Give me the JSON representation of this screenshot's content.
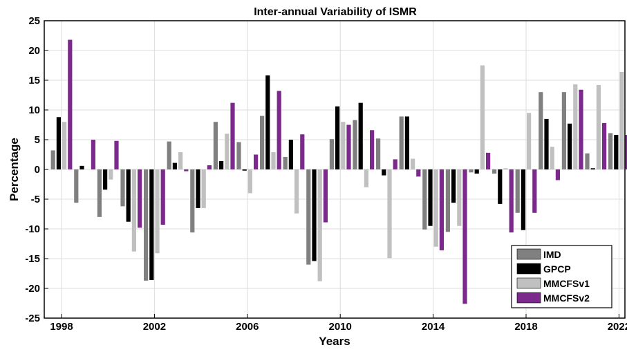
{
  "chart_data": {
    "type": "bar",
    "title": "Inter-annual Variability of ISMR",
    "xlabel": "Years",
    "ylabel": "Percentage",
    "ylim": [
      -25,
      25
    ],
    "yticks": [
      25,
      20,
      15,
      10,
      5,
      0,
      -5,
      -10,
      -15,
      -20,
      -25
    ],
    "xticks": [
      "1998",
      "2002",
      "2006",
      "2010",
      "2014",
      "2018",
      "2022"
    ],
    "grid": true,
    "legend_position": "bottom-right",
    "categories": [
      "1998",
      "1999",
      "2000",
      "2001",
      "2002",
      "2003",
      "2004",
      "2005",
      "2006",
      "2007",
      "2008",
      "2009",
      "2010",
      "2011",
      "2012",
      "2013",
      "2014",
      "2015",
      "2016",
      "2017",
      "2018",
      "2019",
      "2020",
      "2021",
      "2022"
    ],
    "series": [
      {
        "name": "IMD",
        "color": "#808080",
        "values": [
          3.2,
          -5.6,
          -8.0,
          -6.2,
          -18.7,
          4.7,
          -10.6,
          8.0,
          4.6,
          9.0,
          2.1,
          -16.0,
          5.1,
          8.3,
          5.2,
          8.9,
          -10.1,
          -10.5,
          -0.5,
          -0.7,
          -7.3,
          13.0,
          13.0,
          2.7,
          6.1
        ]
      },
      {
        "name": "GPCP",
        "color": "#000000",
        "values": [
          8.8,
          0.6,
          -3.4,
          -8.8,
          -18.6,
          1.1,
          -6.5,
          1.4,
          -0.2,
          15.8,
          5.0,
          -15.4,
          10.6,
          11.2,
          -1.0,
          8.9,
          -9.5,
          -5.6,
          -0.7,
          -5.8,
          -10.2,
          8.5,
          7.7,
          0.2,
          5.8
        ]
      },
      {
        "name": "MMCFSv1",
        "color": "#c0c0c0",
        "values": [
          8.0,
          0.0,
          -1.7,
          -13.8,
          -14.1,
          2.9,
          -6.5,
          6.0,
          -4.0,
          2.9,
          -7.4,
          -18.8,
          8.0,
          -3.0,
          -14.9,
          1.8,
          -13.0,
          -9.5,
          17.5,
          0.2,
          9.5,
          3.8,
          14.3,
          14.2,
          16.4
        ]
      },
      {
        "name": "MMCFSv2",
        "color": "#7b2a8c",
        "values": [
          21.8,
          5.0,
          4.8,
          -9.8,
          -9.3,
          -0.3,
          0.7,
          11.2,
          2.5,
          13.2,
          5.9,
          -8.9,
          7.5,
          6.6,
          1.7,
          -1.2,
          -13.6,
          -22.6,
          2.8,
          -10.6,
          -7.3,
          -1.8,
          13.4,
          7.8,
          5.8
        ]
      }
    ]
  }
}
